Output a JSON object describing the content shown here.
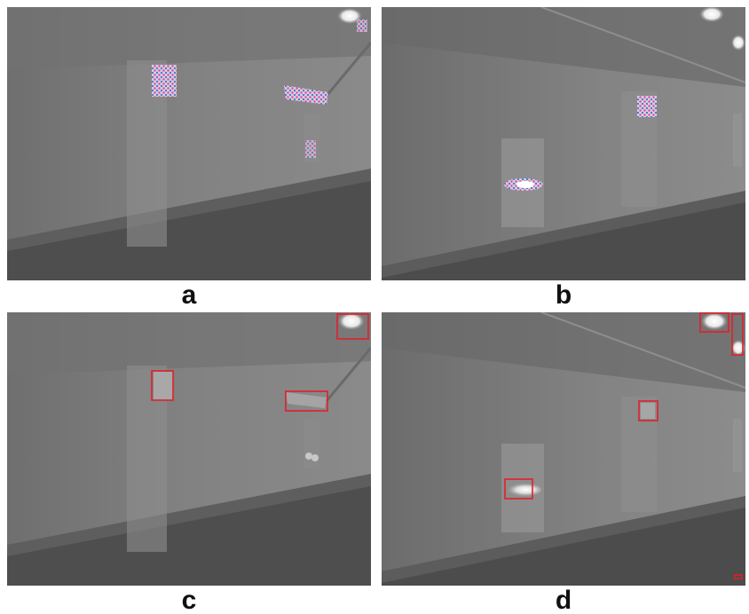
{
  "panels": [
    {
      "id": "a",
      "label": "a",
      "kind": "thermal-tunnel-detections-dotted"
    },
    {
      "id": "b",
      "label": "b",
      "kind": "thermal-tunnel-detections-dotted"
    },
    {
      "id": "c",
      "label": "c",
      "kind": "thermal-tunnel-bounding-boxes"
    },
    {
      "id": "d",
      "label": "d",
      "kind": "thermal-tunnel-bounding-boxes"
    }
  ],
  "colors": {
    "bbox": "#e0202a",
    "dot_magenta": "#e040c0",
    "dot_blue": "#4050e0",
    "caption": "#111111"
  }
}
